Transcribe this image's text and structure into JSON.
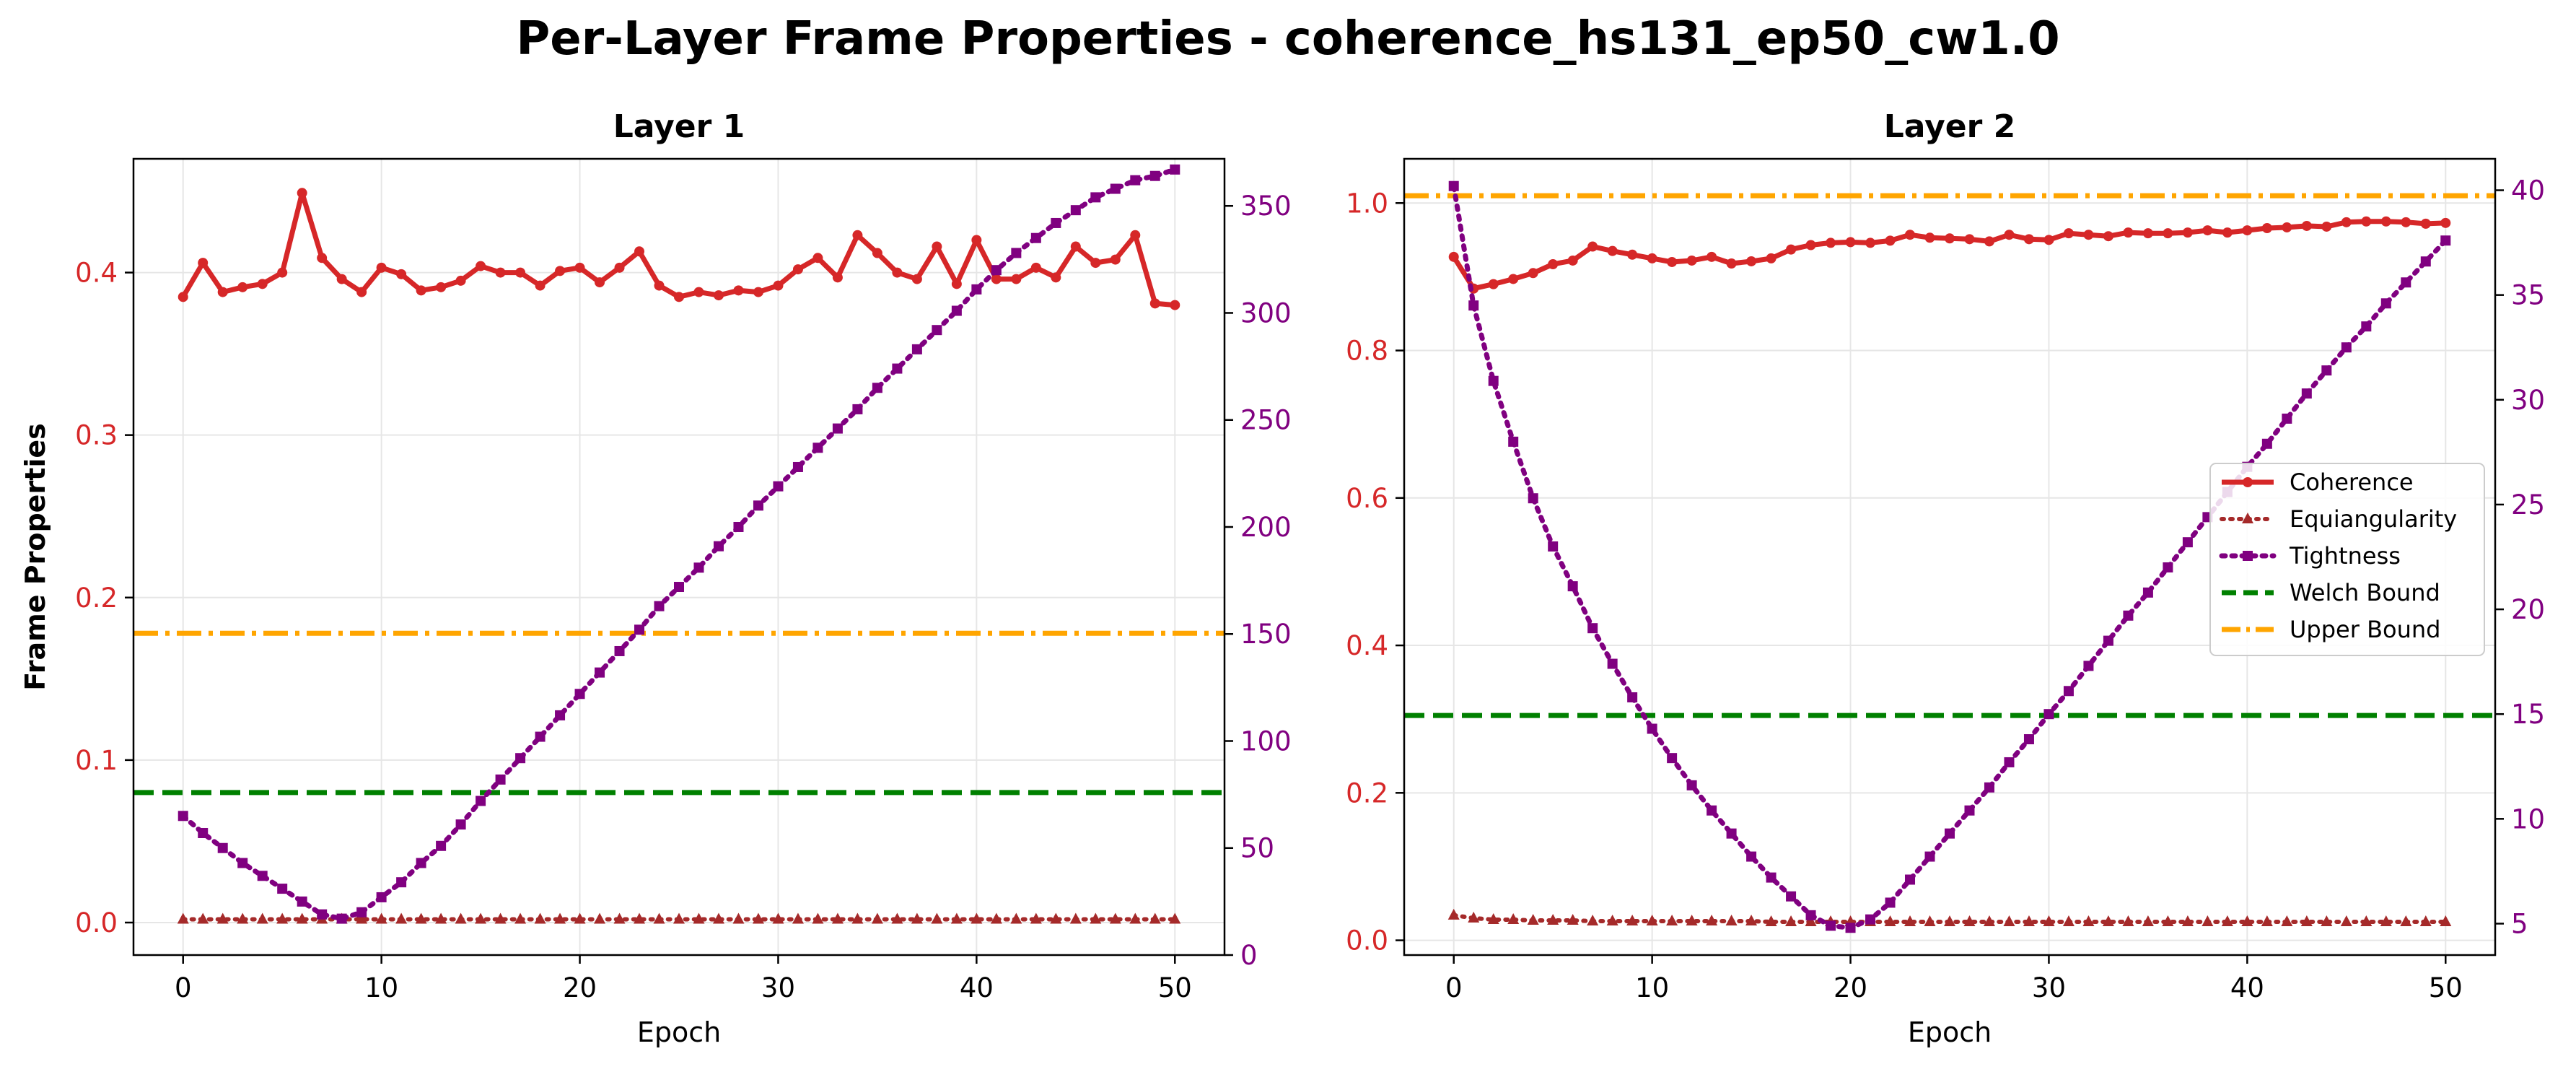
{
  "figure_title": "Per-Layer Frame Properties - coherence_hs131_ep50_cw1.0",
  "colors": {
    "coherence": "#d62728",
    "equiangularity": "#a52a2a",
    "tightness": "#800080",
    "welch": "#008000",
    "upper": "#ffa500",
    "grid": "#e6e6e6",
    "axis": "#000000"
  },
  "legend": {
    "placement": "center-right",
    "panel": 1,
    "items": [
      {
        "key": "coherence",
        "label": "Coherence"
      },
      {
        "key": "equiangularity",
        "label": "Equiangularity"
      },
      {
        "key": "tightness",
        "label": "Tightness"
      },
      {
        "key": "welch",
        "label": "Welch Bound"
      },
      {
        "key": "upper",
        "label": "Upper Bound"
      }
    ]
  },
  "chart_data": [
    {
      "type": "line",
      "title": "Layer 1",
      "xlabel": "Epoch",
      "ylabel": "Frame Properties",
      "xlim": [
        -2.5,
        52.5
      ],
      "ylim": [
        -0.02,
        0.47
      ],
      "y2lim": [
        0,
        372
      ],
      "xticks": [
        0,
        10,
        20,
        30,
        40,
        50
      ],
      "yticks": [
        0.0,
        0.1,
        0.2,
        0.3,
        0.4
      ],
      "y2ticks": [
        0,
        50,
        100,
        150,
        200,
        250,
        300,
        350
      ],
      "grid": true,
      "x": [
        0,
        1,
        2,
        3,
        4,
        5,
        6,
        7,
        8,
        9,
        10,
        11,
        12,
        13,
        14,
        15,
        16,
        17,
        18,
        19,
        20,
        21,
        22,
        23,
        24,
        25,
        26,
        27,
        28,
        29,
        30,
        31,
        32,
        33,
        34,
        35,
        36,
        37,
        38,
        39,
        40,
        41,
        42,
        43,
        44,
        45,
        46,
        47,
        48,
        49,
        50
      ],
      "series": [
        {
          "name": "Coherence",
          "axis": "left",
          "key": "coherence",
          "values": [
            0.385,
            0.406,
            0.388,
            0.391,
            0.393,
            0.4,
            0.449,
            0.409,
            0.396,
            0.388,
            0.403,
            0.399,
            0.389,
            0.391,
            0.395,
            0.404,
            0.4,
            0.4,
            0.392,
            0.401,
            0.403,
            0.394,
            0.403,
            0.413,
            0.392,
            0.385,
            0.388,
            0.386,
            0.389,
            0.388,
            0.392,
            0.402,
            0.409,
            0.397,
            0.423,
            0.412,
            0.4,
            0.396,
            0.416,
            0.393,
            0.42,
            0.396,
            0.396,
            0.403,
            0.397,
            0.416,
            0.406,
            0.408,
            0.423,
            0.381,
            0.38
          ]
        },
        {
          "name": "Equiangularity",
          "axis": "left",
          "key": "equiangularity",
          "values": [
            0.002,
            0.002,
            0.002,
            0.002,
            0.002,
            0.002,
            0.002,
            0.002,
            0.002,
            0.002,
            0.002,
            0.002,
            0.002,
            0.002,
            0.002,
            0.002,
            0.002,
            0.002,
            0.002,
            0.002,
            0.002,
            0.002,
            0.002,
            0.002,
            0.002,
            0.002,
            0.002,
            0.002,
            0.002,
            0.002,
            0.002,
            0.002,
            0.002,
            0.002,
            0.002,
            0.002,
            0.002,
            0.002,
            0.002,
            0.002,
            0.002,
            0.002,
            0.002,
            0.002,
            0.002,
            0.002,
            0.002,
            0.002,
            0.002,
            0.002,
            0.002
          ]
        },
        {
          "name": "Tightness",
          "axis": "right",
          "key": "tightness",
          "values": [
            65,
            57,
            50,
            43,
            37,
            31,
            25,
            19,
            17,
            20,
            27,
            34,
            43,
            51,
            61,
            72,
            82,
            92,
            102,
            112,
            122,
            132,
            142,
            152,
            163,
            172,
            181,
            191,
            200,
            210,
            219,
            228,
            237,
            246,
            255,
            265,
            274,
            283,
            292,
            301,
            311,
            320,
            328,
            335,
            342,
            348,
            354,
            358,
            362,
            364,
            367
          ]
        },
        {
          "name": "Welch Bound",
          "axis": "left",
          "key": "welch",
          "constant": 0.08
        },
        {
          "name": "Upper Bound",
          "axis": "left",
          "key": "upper",
          "constant": 0.178
        }
      ]
    },
    {
      "type": "line",
      "title": "Layer 2",
      "xlabel": "Epoch",
      "ylabel": "",
      "xlim": [
        -2.5,
        52.5
      ],
      "ylim": [
        -0.02,
        1.06
      ],
      "y2lim": [
        3.5,
        41.5
      ],
      "xticks": [
        0,
        10,
        20,
        30,
        40,
        50
      ],
      "yticks": [
        0.0,
        0.2,
        0.4,
        0.6,
        0.8,
        1.0
      ],
      "y2ticks": [
        5,
        10,
        15,
        20,
        25,
        30,
        35,
        40
      ],
      "grid": true,
      "x": [
        0,
        1,
        2,
        3,
        4,
        5,
        6,
        7,
        8,
        9,
        10,
        11,
        12,
        13,
        14,
        15,
        16,
        17,
        18,
        19,
        20,
        21,
        22,
        23,
        24,
        25,
        26,
        27,
        28,
        29,
        30,
        31,
        32,
        33,
        34,
        35,
        36,
        37,
        38,
        39,
        40,
        41,
        42,
        43,
        44,
        45,
        46,
        47,
        48,
        49,
        50
      ],
      "series": [
        {
          "name": "Coherence",
          "axis": "left",
          "key": "coherence",
          "values": [
            0.927,
            0.884,
            0.89,
            0.897,
            0.905,
            0.917,
            0.922,
            0.941,
            0.935,
            0.93,
            0.925,
            0.92,
            0.922,
            0.927,
            0.918,
            0.921,
            0.925,
            0.937,
            0.943,
            0.946,
            0.947,
            0.946,
            0.949,
            0.957,
            0.953,
            0.952,
            0.951,
            0.948,
            0.957,
            0.951,
            0.95,
            0.959,
            0.957,
            0.955,
            0.96,
            0.959,
            0.959,
            0.96,
            0.963,
            0.96,
            0.963,
            0.966,
            0.967,
            0.969,
            0.968,
            0.974,
            0.975,
            0.975,
            0.974,
            0.972,
            0.973
          ]
        },
        {
          "name": "Equiangularity",
          "axis": "left",
          "key": "equiangularity",
          "values": [
            0.034,
            0.03,
            0.028,
            0.028,
            0.027,
            0.027,
            0.027,
            0.026,
            0.026,
            0.026,
            0.026,
            0.026,
            0.026,
            0.026,
            0.026,
            0.026,
            0.025,
            0.025,
            0.025,
            0.025,
            0.025,
            0.025,
            0.025,
            0.025,
            0.025,
            0.025,
            0.025,
            0.025,
            0.025,
            0.025,
            0.025,
            0.025,
            0.025,
            0.025,
            0.025,
            0.025,
            0.025,
            0.025,
            0.025,
            0.025,
            0.025,
            0.025,
            0.025,
            0.025,
            0.025,
            0.025,
            0.025,
            0.025,
            0.025,
            0.025,
            0.025
          ]
        },
        {
          "name": "Tightness",
          "axis": "right",
          "key": "tightness",
          "values": [
            40.2,
            34.5,
            30.9,
            28.0,
            25.3,
            23.0,
            21.1,
            19.1,
            17.4,
            15.8,
            14.3,
            12.9,
            11.6,
            10.4,
            9.3,
            8.2,
            7.2,
            6.3,
            5.4,
            4.9,
            4.8,
            5.2,
            6.0,
            7.1,
            8.2,
            9.3,
            10.4,
            11.5,
            12.7,
            13.8,
            15.0,
            16.1,
            17.3,
            18.5,
            19.7,
            20.8,
            22.0,
            23.2,
            24.4,
            25.6,
            26.8,
            27.9,
            29.1,
            30.3,
            31.4,
            32.5,
            33.5,
            34.6,
            35.6,
            36.6,
            37.6
          ]
        },
        {
          "name": "Welch Bound",
          "axis": "left",
          "key": "welch",
          "constant": 0.305
        },
        {
          "name": "Upper Bound",
          "axis": "left",
          "key": "upper",
          "constant": 1.01
        }
      ]
    }
  ]
}
